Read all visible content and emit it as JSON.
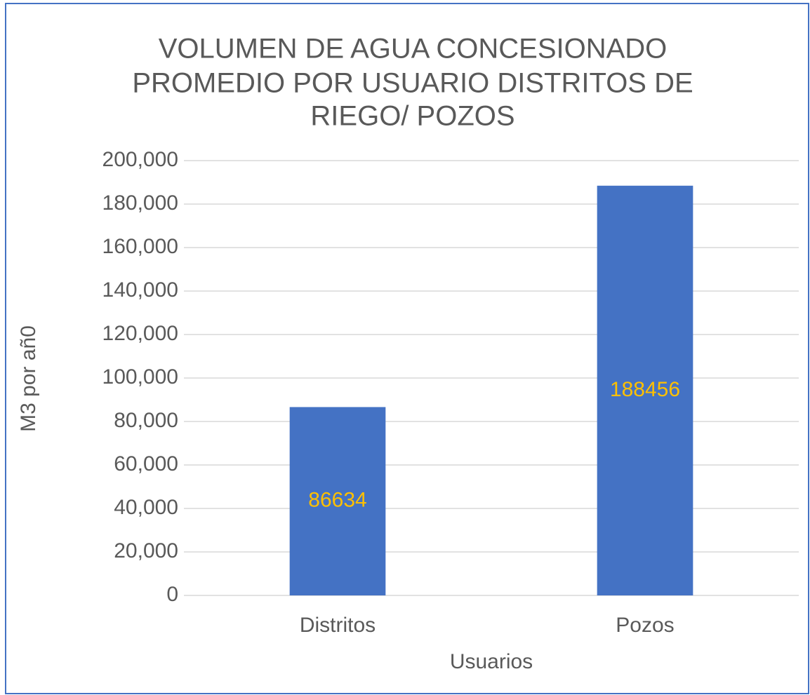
{
  "chart_data": {
    "type": "bar",
    "title": [
      "VOLUMEN DE AGUA CONCESIONADO",
      "PROMEDIO POR USUARIO DISTRITOS DE",
      "RIEGO/ POZOS"
    ],
    "categories": [
      "Distritos",
      "Pozos"
    ],
    "values": [
      86634,
      188456
    ],
    "color": "#4472c4",
    "label_color": "#ffc000",
    "xlabel": "Usuarios",
    "ylabel": "M3 por añ0",
    "ylim": [
      0,
      200000
    ],
    "yticks": [
      0,
      {
        "value": 20000,
        "label": "20,000"
      },
      {
        "value": 40000,
        "label": "40,000"
      },
      {
        "value": 60000,
        "label": "60,000"
      },
      {
        "value": 80000,
        "label": "80,000"
      },
      {
        "value": 100000,
        "label": "100,000"
      },
      {
        "value": 120000,
        "label": "120,000"
      },
      {
        "value": 140000,
        "label": "140,000"
      },
      {
        "value": 160000,
        "label": "160,000"
      },
      {
        "value": 180000,
        "label": "180,000"
      },
      {
        "value": 200000,
        "label": "200,000"
      }
    ],
    "grid": true
  }
}
